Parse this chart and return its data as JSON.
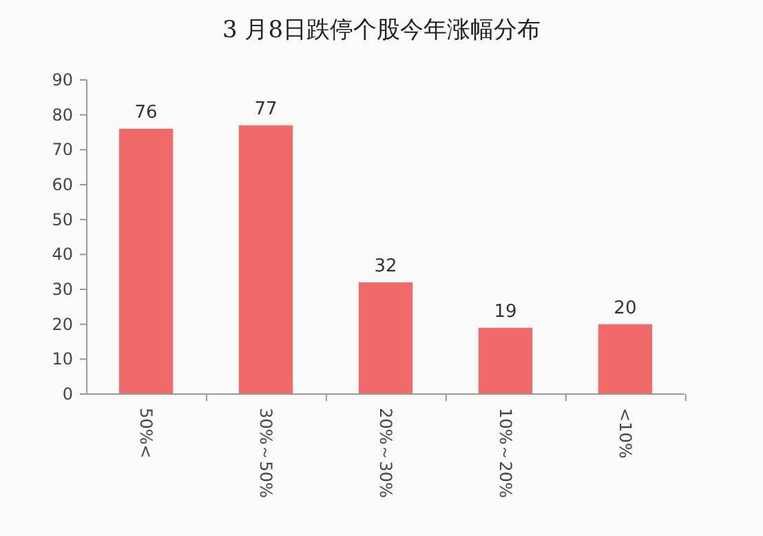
{
  "chart_data": {
    "type": "bar",
    "title": "3 月8日跌停个股今年涨幅分布",
    "categories": [
      "50%<",
      "30%～50%",
      "20%～30%",
      "10%～20%",
      "<10%"
    ],
    "values": [
      76,
      77,
      32,
      19,
      20
    ],
    "color": "#f26a67",
    "ylim": [
      0,
      90
    ],
    "yticks": [
      0,
      10,
      20,
      30,
      40,
      50,
      60,
      70,
      80,
      90
    ],
    "grid": false,
    "data_labels": true
  }
}
